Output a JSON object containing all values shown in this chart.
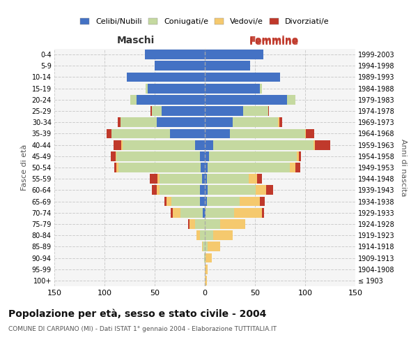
{
  "age_groups": [
    "100+",
    "95-99",
    "90-94",
    "85-89",
    "80-84",
    "75-79",
    "70-74",
    "65-69",
    "60-64",
    "55-59",
    "50-54",
    "45-49",
    "40-44",
    "35-39",
    "30-34",
    "25-29",
    "20-24",
    "15-19",
    "10-14",
    "5-9",
    "0-4"
  ],
  "birth_years": [
    "≤ 1903",
    "1904-1908",
    "1909-1913",
    "1914-1918",
    "1919-1923",
    "1924-1928",
    "1929-1933",
    "1934-1938",
    "1939-1943",
    "1944-1948",
    "1949-1953",
    "1954-1958",
    "1959-1963",
    "1964-1968",
    "1969-1973",
    "1974-1978",
    "1979-1983",
    "1984-1988",
    "1989-1993",
    "1994-1998",
    "1999-2003"
  ],
  "maschi": {
    "celibi": [
      0,
      0,
      0,
      0,
      0,
      0,
      2,
      5,
      5,
      3,
      4,
      5,
      10,
      35,
      48,
      43,
      68,
      57,
      78,
      50,
      60
    ],
    "coniugati": [
      0,
      0,
      1,
      2,
      5,
      10,
      22,
      28,
      40,
      42,
      82,
      83,
      72,
      58,
      36,
      10,
      6,
      2,
      0,
      0,
      0
    ],
    "vedovi": [
      0,
      0,
      0,
      1,
      3,
      5,
      8,
      5,
      3,
      2,
      2,
      1,
      1,
      0,
      0,
      0,
      0,
      0,
      0,
      0,
      0
    ],
    "divorziati": [
      0,
      0,
      0,
      0,
      0,
      2,
      2,
      2,
      5,
      8,
      2,
      5,
      8,
      5,
      3,
      1,
      0,
      0,
      0,
      0,
      0
    ]
  },
  "femmine": {
    "nubili": [
      0,
      0,
      0,
      0,
      0,
      0,
      1,
      2,
      3,
      2,
      3,
      4,
      8,
      25,
      28,
      38,
      82,
      55,
      75,
      45,
      58
    ],
    "coniugate": [
      0,
      0,
      1,
      3,
      8,
      15,
      28,
      33,
      48,
      42,
      82,
      88,
      100,
      75,
      45,
      25,
      8,
      2,
      0,
      0,
      0
    ],
    "vedove": [
      2,
      3,
      6,
      12,
      20,
      25,
      28,
      20,
      10,
      8,
      5,
      2,
      2,
      1,
      1,
      0,
      0,
      0,
      0,
      0,
      0
    ],
    "divorziate": [
      0,
      0,
      0,
      0,
      0,
      0,
      2,
      5,
      7,
      5,
      5,
      2,
      15,
      8,
      3,
      1,
      0,
      0,
      0,
      0,
      0
    ]
  },
  "colors": {
    "celibi": "#4472c4",
    "coniugati": "#c5d9a0",
    "vedovi": "#f5c96e",
    "divorziati": "#c0392b"
  },
  "xlim": 150,
  "title": "Popolazione per età, sesso e stato civile - 2004",
  "subtitle": "COMUNE DI CARPIANO (MI) - Dati ISTAT 1° gennaio 2004 - Elaborazione TUTTITALIA.IT",
  "ylabel_left": "Fasce di età",
  "ylabel_right": "Anni di nascita",
  "xlabel_left": "Maschi",
  "xlabel_right": "Femmine",
  "bg_color": "#ffffff",
  "plot_bg": "#f5f5f5",
  "grid_color": "#cccccc"
}
